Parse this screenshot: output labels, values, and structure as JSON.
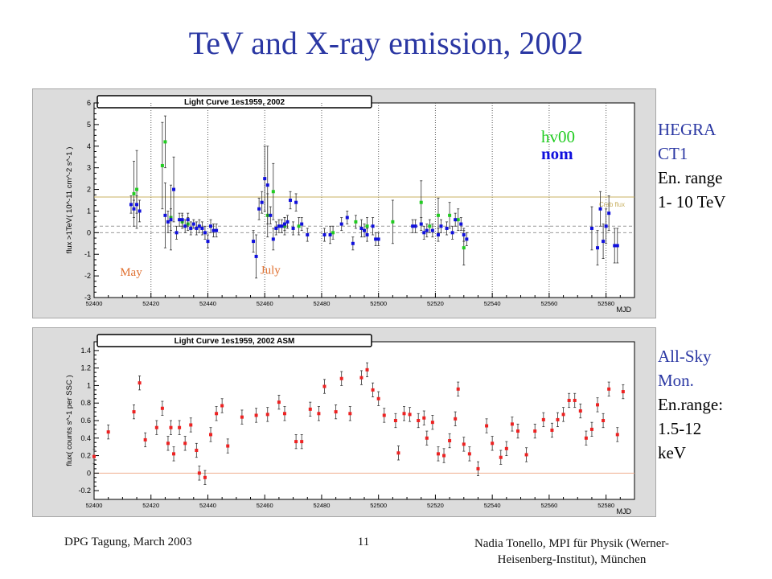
{
  "slide": {
    "title": "TeV and X-ray emission, 2002",
    "footer_left": "DPG Tagung, March 2003",
    "page_number": "11",
    "footer_right_line1": "Nadia Tonello, MPI für Physik (Werner-",
    "footer_right_line2": "Heisenberg-Institut), München"
  },
  "side_top": {
    "line1": "HEGRA",
    "line2": "CT1",
    "line3": "En. range",
    "line4": "1- 10 TeV"
  },
  "side_bottom": {
    "line1": "All-Sky",
    "line2": "Mon.",
    "line3": "En.range:",
    "line4": "1.5-12",
    "line5": "keV"
  },
  "colors": {
    "title": "#2a37a3",
    "hv00": "#22cc22",
    "nom": "#1010dd",
    "asm": "#ee2222",
    "crab": "#c8b060",
    "annot": "#e07030"
  },
  "chart_data": [
    {
      "type": "scatter",
      "title": "Light Curve 1es1959, 2002",
      "xlabel": "MJD",
      "ylabel": "flux >1TeV( 10^-11 cm^-2 s^-1 )",
      "xlim": [
        52400,
        52590
      ],
      "ylim": [
        -3,
        6
      ],
      "xticks": [
        52400,
        52420,
        52440,
        52460,
        52480,
        52500,
        52520,
        52540,
        52560,
        52580
      ],
      "yticks": [
        -3,
        -2,
        -1,
        0,
        1,
        2,
        3,
        4,
        5,
        6
      ],
      "vlines": [
        52420,
        52440,
        52460,
        52480,
        52500,
        52520,
        52540,
        52560,
        52580
      ],
      "hlines": [
        {
          "y": 1.65,
          "label": "Crab flux"
        },
        {
          "y": 0.3
        },
        {
          "y": 0
        }
      ],
      "legend": [
        "hv00",
        "nom"
      ],
      "legend_position": "top-right",
      "annotations": [
        {
          "text": "May",
          "x": 52413,
          "y": -2.0
        },
        {
          "text": "July",
          "x": 52462,
          "y": -1.9
        }
      ],
      "series": [
        {
          "name": "hv00",
          "points": [
            [
              52414,
              1.8,
              1.5
            ],
            [
              52415,
              2.0,
              1.8
            ],
            [
              52424,
              3.1,
              2.0
            ],
            [
              52425,
              4.2,
              1.2
            ],
            [
              52427,
              0.7,
              1.5
            ],
            [
              52431,
              0.5,
              0.3
            ],
            [
              52433,
              0.4,
              0.3
            ],
            [
              52461,
              0.8,
              1.0
            ],
            [
              52463,
              1.9,
              1.3
            ],
            [
              52467,
              0.3,
              0.4
            ],
            [
              52472,
              0.3,
              0.4
            ],
            [
              52484,
              0.0,
              0.3
            ],
            [
              52492,
              0.5,
              0.3
            ],
            [
              52496,
              0.3,
              0.4
            ],
            [
              52505,
              0.5,
              1.0
            ],
            [
              52515,
              1.4,
              1.0
            ],
            [
              52518,
              0.3,
              0.3
            ],
            [
              52521,
              0.8,
              0.8
            ],
            [
              52525,
              0.8,
              0.6
            ],
            [
              52528,
              0.6,
              0.5
            ],
            [
              52530,
              -0.7,
              0.8
            ]
          ]
        },
        {
          "name": "nom",
          "points": [
            [
              52413,
              1.3,
              0.4
            ],
            [
              52414,
              1.1,
              0.4
            ],
            [
              52415,
              1.3,
              0.4
            ],
            [
              52416,
              1.0,
              0.5
            ],
            [
              52425,
              0.8,
              1.5
            ],
            [
              52426,
              0.5,
              0.5
            ],
            [
              52427,
              0.6,
              0.5
            ],
            [
              52428,
              2.0,
              1.5
            ],
            [
              52429,
              0.0,
              0.3
            ],
            [
              52430,
              0.6,
              0.3
            ],
            [
              52431,
              0.6,
              0.3
            ],
            [
              52432,
              0.3,
              0.3
            ],
            [
              52433,
              0.6,
              0.3
            ],
            [
              52434,
              0.2,
              0.3
            ],
            [
              52435,
              0.4,
              0.2
            ],
            [
              52436,
              0.2,
              0.3
            ],
            [
              52437,
              0.3,
              0.3
            ],
            [
              52438,
              0.2,
              0.3
            ],
            [
              52439,
              0.0,
              0.3
            ],
            [
              52440,
              -0.4,
              0.3
            ],
            [
              52441,
              0.3,
              0.3
            ],
            [
              52442,
              0.1,
              0.3
            ],
            [
              52443,
              0.1,
              0.3
            ],
            [
              52456,
              -0.4,
              0.5
            ],
            [
              52457,
              -1.1,
              1.0
            ],
            [
              52458,
              1.1,
              0.5
            ],
            [
              52459,
              1.4,
              0.5
            ],
            [
              52460,
              2.5,
              1.5
            ],
            [
              52461,
              2.2,
              1.8
            ],
            [
              52462,
              0.8,
              0.4
            ],
            [
              52463,
              -0.3,
              0.5
            ],
            [
              52464,
              0.2,
              0.3
            ],
            [
              52465,
              0.3,
              0.3
            ],
            [
              52466,
              0.3,
              0.3
            ],
            [
              52467,
              0.4,
              0.3
            ],
            [
              52468,
              0.5,
              0.3
            ],
            [
              52469,
              1.5,
              0.4
            ],
            [
              52470,
              0.2,
              0.3
            ],
            [
              52471,
              1.4,
              0.4
            ],
            [
              52473,
              0.4,
              0.3
            ],
            [
              52475,
              -0.1,
              0.3
            ],
            [
              52481,
              -0.1,
              0.3
            ],
            [
              52483,
              -0.1,
              0.4
            ],
            [
              52487,
              0.4,
              0.3
            ],
            [
              52489,
              0.7,
              0.3
            ],
            [
              52491,
              -0.5,
              0.3
            ],
            [
              52494,
              0.2,
              0.4
            ],
            [
              52495,
              0.1,
              0.3
            ],
            [
              52496,
              -0.1,
              0.3
            ],
            [
              52498,
              0.3,
              0.4
            ],
            [
              52499,
              -0.3,
              0.3
            ],
            [
              52500,
              -0.3,
              0.3
            ],
            [
              52512,
              0.3,
              0.3
            ],
            [
              52513,
              0.3,
              0.3
            ],
            [
              52515,
              0.4,
              0.3
            ],
            [
              52516,
              0.0,
              0.3
            ],
            [
              52517,
              0.1,
              0.3
            ],
            [
              52519,
              0.1,
              0.3
            ],
            [
              52521,
              -0.1,
              0.3
            ],
            [
              52522,
              0.3,
              0.3
            ],
            [
              52524,
              0.2,
              0.3
            ],
            [
              52526,
              0.0,
              0.3
            ],
            [
              52527,
              0.6,
              0.3
            ],
            [
              52529,
              0.4,
              0.3
            ],
            [
              52530,
              -0.1,
              0.3
            ],
            [
              52531,
              -0.3,
              0.3
            ],
            [
              52575,
              0.2,
              1.0
            ],
            [
              52577,
              -0.7,
              0.8
            ],
            [
              52578,
              1.1,
              0.8
            ],
            [
              52579,
              -0.4,
              0.8
            ],
            [
              52580,
              0.3,
              0.8
            ],
            [
              52581,
              0.9,
              0.8
            ],
            [
              52583,
              -0.6,
              0.8
            ],
            [
              52584,
              -0.6,
              0.8
            ]
          ]
        }
      ]
    },
    {
      "type": "scatter",
      "title": "Light Curve 1es1959, 2002 ASM",
      "xlabel": "MJD",
      "ylabel": "flux( counts s^-1 per SSC )",
      "xlim": [
        52400,
        52590
      ],
      "ylim": [
        -0.3,
        1.5
      ],
      "xticks": [
        52400,
        52420,
        52440,
        52460,
        52480,
        52500,
        52520,
        52540,
        52560,
        52580
      ],
      "yticks": [
        -0.2,
        0,
        0.2,
        0.4,
        0.6,
        0.8,
        1.0,
        1.2,
        1.4
      ],
      "hlines": [
        {
          "y": 0
        }
      ],
      "series": [
        {
          "name": "ASM",
          "points": [
            [
              52400,
              0.19,
              0.08
            ],
            [
              52405,
              0.47,
              0.08
            ],
            [
              52414,
              0.7,
              0.08
            ],
            [
              52416,
              1.03,
              0.08
            ],
            [
              52418,
              0.38,
              0.08
            ],
            [
              52422,
              0.52,
              0.08
            ],
            [
              52424,
              0.74,
              0.08
            ],
            [
              52426,
              0.34,
              0.08
            ],
            [
              52427,
              0.52,
              0.08
            ],
            [
              52428,
              0.22,
              0.08
            ],
            [
              52430,
              0.52,
              0.08
            ],
            [
              52432,
              0.34,
              0.08
            ],
            [
              52434,
              0.55,
              0.08
            ],
            [
              52436,
              0.26,
              0.08
            ],
            [
              52437,
              0.0,
              0.08
            ],
            [
              52439,
              -0.05,
              0.08
            ],
            [
              52441,
              0.44,
              0.08
            ],
            [
              52443,
              0.68,
              0.08
            ],
            [
              52445,
              0.77,
              0.08
            ],
            [
              52447,
              0.31,
              0.08
            ],
            [
              52452,
              0.64,
              0.08
            ],
            [
              52457,
              0.66,
              0.08
            ],
            [
              52461,
              0.67,
              0.08
            ],
            [
              52465,
              0.81,
              0.08
            ],
            [
              52467,
              0.68,
              0.08
            ],
            [
              52471,
              0.36,
              0.08
            ],
            [
              52473,
              0.36,
              0.08
            ],
            [
              52476,
              0.73,
              0.08
            ],
            [
              52479,
              0.68,
              0.08
            ],
            [
              52481,
              0.99,
              0.08
            ],
            [
              52485,
              0.7,
              0.08
            ],
            [
              52487,
              1.08,
              0.08
            ],
            [
              52490,
              0.68,
              0.08
            ],
            [
              52494,
              1.09,
              0.08
            ],
            [
              52496,
              1.18,
              0.08
            ],
            [
              52498,
              0.95,
              0.08
            ],
            [
              52500,
              0.85,
              0.08
            ],
            [
              52502,
              0.66,
              0.08
            ],
            [
              52506,
              0.6,
              0.08
            ],
            [
              52507,
              0.23,
              0.08
            ],
            [
              52509,
              0.68,
              0.08
            ],
            [
              52511,
              0.67,
              0.08
            ],
            [
              52514,
              0.6,
              0.08
            ],
            [
              52516,
              0.63,
              0.08
            ],
            [
              52517,
              0.4,
              0.08
            ],
            [
              52519,
              0.58,
              0.08
            ],
            [
              52521,
              0.22,
              0.08
            ],
            [
              52523,
              0.2,
              0.08
            ],
            [
              52525,
              0.37,
              0.08
            ],
            [
              52527,
              0.62,
              0.08
            ],
            [
              52528,
              0.96,
              0.08
            ],
            [
              52530,
              0.33,
              0.08
            ],
            [
              52532,
              0.22,
              0.08
            ],
            [
              52535,
              0.05,
              0.08
            ],
            [
              52538,
              0.54,
              0.08
            ],
            [
              52540,
              0.34,
              0.08
            ],
            [
              52543,
              0.18,
              0.08
            ],
            [
              52545,
              0.28,
              0.08
            ],
            [
              52547,
              0.56,
              0.08
            ],
            [
              52549,
              0.48,
              0.08
            ],
            [
              52552,
              0.21,
              0.08
            ],
            [
              52555,
              0.48,
              0.08
            ],
            [
              52558,
              0.61,
              0.08
            ],
            [
              52561,
              0.49,
              0.08
            ],
            [
              52563,
              0.61,
              0.08
            ],
            [
              52565,
              0.67,
              0.08
            ],
            [
              52567,
              0.83,
              0.08
            ],
            [
              52569,
              0.83,
              0.08
            ],
            [
              52571,
              0.71,
              0.08
            ],
            [
              52573,
              0.4,
              0.08
            ],
            [
              52575,
              0.5,
              0.08
            ],
            [
              52577,
              0.78,
              0.08
            ],
            [
              52579,
              0.6,
              0.08
            ],
            [
              52581,
              0.96,
              0.08
            ],
            [
              52584,
              0.44,
              0.08
            ],
            [
              52586,
              0.93,
              0.08
            ]
          ]
        }
      ]
    }
  ]
}
